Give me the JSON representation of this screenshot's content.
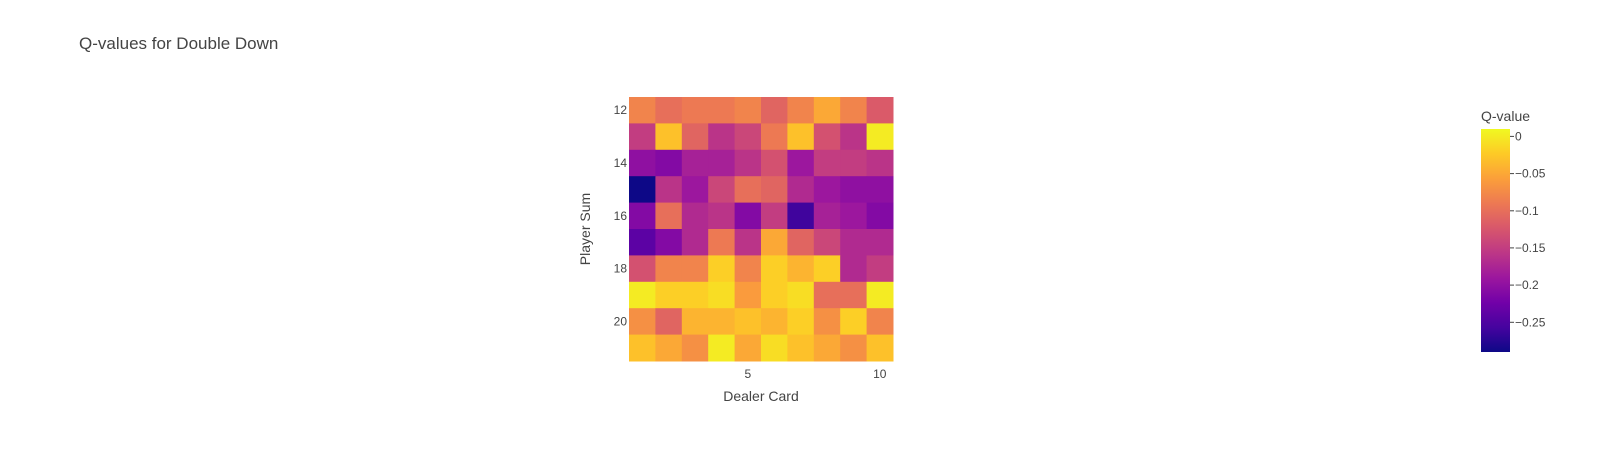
{
  "chart_data": {
    "type": "heatmap",
    "title": "Q-values for Double Down",
    "xlabel": "Dealer Card",
    "ylabel": "Player Sum",
    "colorbar_title": "Q-value",
    "x": [
      1,
      2,
      3,
      4,
      5,
      6,
      7,
      8,
      9,
      10
    ],
    "y": [
      12,
      13,
      14,
      15,
      16,
      17,
      18,
      19,
      20,
      21
    ],
    "xtick_values": [
      5,
      10
    ],
    "xtick_labels": [
      "5",
      "10"
    ],
    "ytick_values": [
      12,
      14,
      16,
      18,
      20
    ],
    "ytick_labels": [
      "12",
      "14",
      "16",
      "18",
      "20"
    ],
    "zmin": -0.29,
    "zmax": 0.01,
    "colorbar_tick_values": [
      0,
      -0.05,
      -0.1,
      -0.15,
      -0.2,
      -0.25
    ],
    "colorbar_tick_labels": [
      "0",
      "−0.05",
      "−0.1",
      "−0.15",
      "−0.2",
      "−0.25"
    ],
    "colorscale": [
      "#0d0887",
      "#46039f",
      "#7201a8",
      "#9c179e",
      "#bd3786",
      "#d8576b",
      "#ed7953",
      "#fb9f3a",
      "#fdca26",
      "#f0f921"
    ],
    "z": [
      [
        -0.08,
        -0.1,
        -0.09,
        -0.09,
        -0.08,
        -0.11,
        -0.08,
        -0.05,
        -0.08,
        -0.12
      ],
      [
        -0.15,
        -0.03,
        -0.11,
        -0.16,
        -0.14,
        -0.09,
        -0.03,
        -0.13,
        -0.16,
        0.0
      ],
      [
        -0.2,
        -0.21,
        -0.18,
        -0.18,
        -0.16,
        -0.13,
        -0.19,
        -0.15,
        -0.15,
        -0.16
      ],
      [
        -0.29,
        -0.16,
        -0.19,
        -0.14,
        -0.1,
        -0.11,
        -0.17,
        -0.19,
        -0.2,
        -0.2
      ],
      [
        -0.21,
        -0.1,
        -0.17,
        -0.16,
        -0.21,
        -0.15,
        -0.26,
        -0.18,
        -0.19,
        -0.21
      ],
      [
        -0.24,
        -0.21,
        -0.17,
        -0.09,
        -0.16,
        -0.05,
        -0.11,
        -0.14,
        -0.17,
        -0.17
      ],
      [
        -0.13,
        -0.08,
        -0.08,
        -0.02,
        -0.08,
        -0.02,
        -0.04,
        -0.02,
        -0.17,
        -0.15
      ],
      [
        0.0,
        -0.02,
        -0.02,
        -0.01,
        -0.06,
        -0.02,
        -0.01,
        -0.1,
        -0.1,
        0.0
      ],
      [
        -0.07,
        -0.11,
        -0.04,
        -0.04,
        -0.03,
        -0.04,
        -0.02,
        -0.07,
        -0.02,
        -0.08
      ],
      [
        -0.03,
        -0.05,
        -0.07,
        0.0,
        -0.05,
        -0.01,
        -0.03,
        -0.05,
        -0.07,
        -0.03
      ]
    ]
  }
}
